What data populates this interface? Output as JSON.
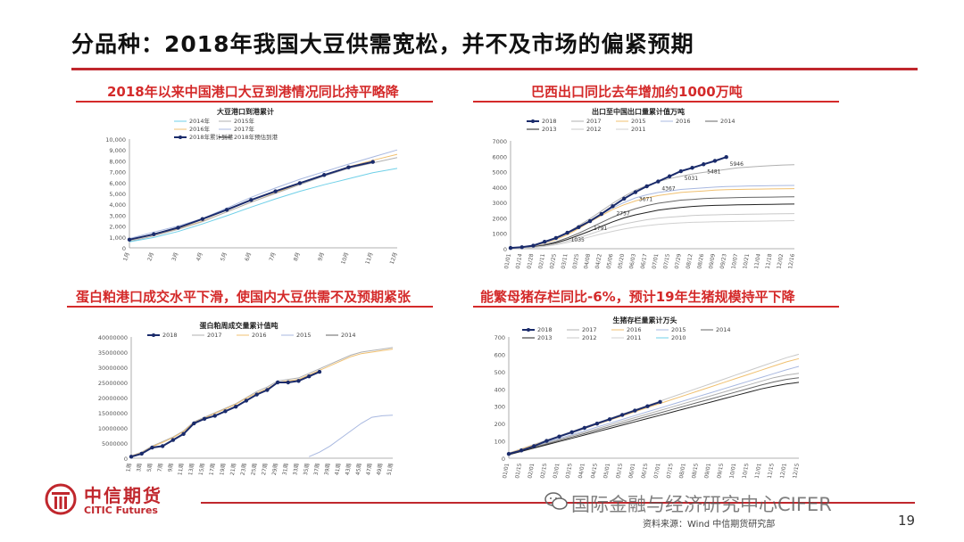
{
  "slide": {
    "title": "分品种：2018年我国大豆供需宽松，并不及市场的偏紧预期",
    "page_number": "19",
    "source": "资料来源：Wind 中信期货研究部",
    "watermark": "国际金融与经济研究中心CIFER"
  },
  "logo": {
    "name_cn": "中信期货",
    "name_en": "CITIC Futures"
  },
  "colors": {
    "accent": "#c0272d",
    "title_red": "#d42a2a"
  },
  "chart_data": [
    {
      "id": "port-arrivals",
      "type": "line",
      "panel_title": "2018年以来中国港口大豆到港情况同比持平略降",
      "title": "大豆港口到港累计",
      "categories": [
        "1月",
        "2月",
        "3月",
        "4月",
        "5月",
        "6月",
        "7月",
        "8月",
        "9月",
        "10月",
        "11月",
        "12月"
      ],
      "ylim": [
        0,
        10000
      ],
      "yticks": [
        "0",
        "1,000",
        "2,000",
        "3,000",
        "4,000",
        "5,000",
        "6,000",
        "7,000",
        "8,000",
        "9,000",
        "10,000"
      ],
      "legend": [
        "2014年",
        "2015年",
        "2016年",
        "2017年",
        "2018年累计到港",
        "2018年预估到港"
      ],
      "series": [
        {
          "name": "2018年累计到港",
          "highlight": true,
          "values": [
            750,
            1250,
            1850,
            2650,
            3500,
            4400,
            5200,
            5950,
            6700,
            7400,
            7900,
            null
          ]
        },
        {
          "name": "2017年",
          "values": [
            850,
            1450,
            2000,
            2700,
            3650,
            4650,
            5500,
            6300,
            7000,
            7700,
            8350,
            9000
          ]
        },
        {
          "name": "2016年",
          "values": [
            700,
            1200,
            1750,
            2450,
            3300,
            4200,
            5050,
            5900,
            6700,
            7450,
            8050,
            8600
          ]
        },
        {
          "name": "2015年",
          "values": [
            600,
            1100,
            1700,
            2400,
            3300,
            4200,
            5000,
            5800,
            6600,
            7300,
            7800,
            8300
          ]
        },
        {
          "name": "2014年",
          "values": [
            550,
            950,
            1500,
            2200,
            2950,
            3750,
            4500,
            5200,
            5800,
            6350,
            6900,
            7300
          ]
        }
      ]
    },
    {
      "id": "brazil-exports",
      "type": "line",
      "panel_title": "巴西出口同比去年增加约1000万吨",
      "title": "出口至中国出口量累计值万吨",
      "categories": [
        "01/01",
        "01/14",
        "01/28",
        "02/11",
        "02/25",
        "03/11",
        "03/25",
        "04/08",
        "04/22",
        "05/06",
        "05/20",
        "06/03",
        "06/17",
        "07/01",
        "07/15",
        "07/29",
        "08/12",
        "08/26",
        "09/09",
        "09/23",
        "10/07",
        "10/21",
        "11/04",
        "11/18",
        "12/02",
        "12/16"
      ],
      "ylim": [
        0,
        7000
      ],
      "yticks": [
        "0",
        "1000",
        "2000",
        "3000",
        "4000",
        "5000",
        "6000",
        "7000"
      ],
      "legend": [
        "2018",
        "2017",
        "2015",
        "2016",
        "2014",
        "2013",
        "2012",
        "2011"
      ],
      "data_labels": [
        "1035",
        "1791",
        "2757",
        "3671",
        "4367",
        "5031",
        "5481",
        "5946"
      ],
      "series": [
        {
          "name": "2018",
          "highlight": true,
          "values": [
            50,
            100,
            200,
            450,
            700,
            1035,
            1400,
            1791,
            2250,
            2757,
            3250,
            3671,
            4050,
            4367,
            4700,
            5031,
            5250,
            5481,
            5700,
            5946,
            null,
            null,
            null,
            null,
            null,
            null
          ]
        },
        {
          "name": "2017",
          "values": [
            50,
            100,
            200,
            400,
            700,
            1050,
            1500,
            1950,
            2450,
            2950,
            3400,
            3800,
            4100,
            4350,
            4550,
            4700,
            4850,
            4950,
            5050,
            5150,
            5250,
            5300,
            5350,
            5400,
            5430,
            5450
          ]
        },
        {
          "name": "2015",
          "values": [
            30,
            80,
            180,
            350,
            600,
            900,
            1300,
            1750,
            2150,
            2550,
            2850,
            3100,
            3300,
            3450,
            3550,
            3650,
            3700,
            3750,
            3800,
            3830,
            3850,
            3860,
            3870,
            3880,
            3890,
            3900
          ]
        },
        {
          "name": "2016",
          "values": [
            40,
            90,
            190,
            380,
            650,
            980,
            1380,
            1800,
            2250,
            2650,
            3000,
            3300,
            3500,
            3650,
            3750,
            3850,
            3900,
            3950,
            4000,
            4030,
            4050,
            4070,
            4080,
            4090,
            4100,
            4110
          ]
        },
        {
          "name": "2014",
          "values": [
            20,
            60,
            130,
            260,
            450,
            700,
            1000,
            1350,
            1700,
            2050,
            2350,
            2600,
            2800,
            2950,
            3050,
            3150,
            3200,
            3250,
            3280,
            3300,
            3320,
            3330,
            3340,
            3350,
            3360,
            3370
          ]
        },
        {
          "name": "2013",
          "values": [
            20,
            50,
            110,
            220,
            380,
            600,
            870,
            1150,
            1450,
            1750,
            2000,
            2200,
            2350,
            2500,
            2600,
            2680,
            2740,
            2780,
            2810,
            2830,
            2850,
            2860,
            2870,
            2880,
            2890,
            2900
          ]
        },
        {
          "name": "2012",
          "values": [
            15,
            40,
            90,
            180,
            320,
            500,
            720,
            950,
            1200,
            1420,
            1600,
            1750,
            1880,
            1980,
            2050,
            2100,
            2150,
            2180,
            2200,
            2220,
            2230,
            2240,
            2250,
            2260,
            2270,
            2280
          ]
        },
        {
          "name": "2011",
          "values": [
            10,
            30,
            70,
            150,
            260,
            400,
            580,
            770,
            960,
            1130,
            1280,
            1400,
            1500,
            1580,
            1640,
            1680,
            1710,
            1730,
            1750,
            1760,
            1770,
            1780,
            1790,
            1800,
            1810,
            1820
          ]
        }
      ]
    },
    {
      "id": "meal-volume",
      "type": "line",
      "panel_title": "蛋白粕港口成交水平下滑，使国内大豆供需不及预期紧张",
      "title": "蛋白粕周成交量累计值吨",
      "categories": [
        "1周",
        "3周",
        "5周",
        "7周",
        "9周",
        "11周",
        "13周",
        "15周",
        "17周",
        "19周",
        "21周",
        "23周",
        "25周",
        "27周",
        "29周",
        "31周",
        "33周",
        "35周",
        "37周",
        "39周",
        "41周",
        "43周",
        "45周",
        "47周",
        "49周",
        "51周"
      ],
      "ylim": [
        0,
        40000000
      ],
      "yticks": [
        "0",
        "5000000",
        "10000000",
        "15000000",
        "20000000",
        "25000000",
        "30000000",
        "35000000",
        "40000000"
      ],
      "legend": [
        "2018",
        "2017",
        "2016",
        "2015",
        "2014"
      ],
      "series": [
        {
          "name": "2018",
          "highlight": true,
          "values": [
            500000,
            1500000,
            3500000,
            4000000,
            6000000,
            8000000,
            11500000,
            13000000,
            14000000,
            15500000,
            17000000,
            19000000,
            21000000,
            22500000,
            25000000,
            25000000,
            25500000,
            27000000,
            28500000,
            null,
            null,
            null,
            null,
            null,
            null,
            null
          ]
        },
        {
          "name": "2017",
          "values": [
            800000,
            2000000,
            4000000,
            5500000,
            7000000,
            9000000,
            12000000,
            13500000,
            15000000,
            16500000,
            18000000,
            20000000,
            22000000,
            23500000,
            25500000,
            26000000,
            26500000,
            28000000,
            29500000,
            31000000,
            32500000,
            34000000,
            35000000,
            35500000,
            36000000,
            36500000
          ]
        },
        {
          "name": "2016",
          "values": [
            700000,
            1800000,
            3800000,
            5200000,
            6800000,
            8800000,
            11800000,
            13200000,
            14800000,
            16200000,
            17800000,
            19800000,
            21500000,
            23000000,
            25000000,
            25500000,
            26000000,
            27500000,
            29000000,
            30500000,
            32000000,
            33500000,
            34500000,
            35000000,
            35500000,
            36000000
          ]
        },
        {
          "name": "2015",
          "values": [
            null,
            null,
            null,
            null,
            null,
            null,
            null,
            null,
            null,
            null,
            null,
            null,
            null,
            null,
            null,
            null,
            null,
            500000,
            2000000,
            4000000,
            6500000,
            9000000,
            11500000,
            13500000,
            14000000,
            14200000
          ]
        }
      ]
    },
    {
      "id": "sow-inventory",
      "type": "line",
      "panel_title": "能繁母猪存栏同比-6%，预计19年生猪规模持平下降",
      "title": "生猪存栏量累计万头",
      "categories": [
        "01/01",
        "01/15",
        "02/01",
        "02/15",
        "03/01",
        "03/15",
        "04/01",
        "04/15",
        "05/01",
        "05/15",
        "06/01",
        "06/15",
        "07/01",
        "07/15",
        "08/01",
        "08/15",
        "09/01",
        "09/15",
        "10/01",
        "10/15",
        "11/01",
        "11/15",
        "12/01",
        "12/15"
      ],
      "ylim": [
        0,
        700
      ],
      "yticks": [
        "0",
        "100",
        "200",
        "300",
        "400",
        "500",
        "600",
        "700"
      ],
      "legend": [
        "2018",
        "2017",
        "2016",
        "2015",
        "2014",
        "2013",
        "2012",
        "2011",
        "2010"
      ],
      "series": [
        {
          "name": "2018",
          "highlight": true,
          "values": [
            25,
            45,
            70,
            100,
            125,
            150,
            175,
            200,
            225,
            250,
            275,
            300,
            325,
            null,
            null,
            null,
            null,
            null,
            null,
            null,
            null,
            null,
            null,
            null
          ]
        },
        {
          "name": "2012",
          "values": [
            30,
            55,
            80,
            105,
            130,
            155,
            180,
            205,
            230,
            255,
            280,
            305,
            330,
            355,
            380,
            405,
            430,
            455,
            480,
            505,
            530,
            555,
            580,
            600
          ]
        },
        {
          "name": "2016",
          "values": [
            28,
            52,
            76,
            100,
            124,
            148,
            172,
            196,
            220,
            244,
            268,
            292,
            316,
            340,
            364,
            388,
            412,
            436,
            460,
            484,
            508,
            532,
            556,
            575
          ]
        },
        {
          "name": "2015",
          "values": [
            26,
            48,
            70,
            92,
            114,
            136,
            158,
            180,
            202,
            224,
            246,
            268,
            290,
            312,
            334,
            356,
            378,
            400,
            422,
            444,
            466,
            488,
            510,
            530
          ]
        },
        {
          "name": "2017",
          "values": [
            24,
            45,
            66,
            87,
            108,
            129,
            150,
            171,
            192,
            213,
            234,
            255,
            276,
            297,
            318,
            339,
            360,
            381,
            402,
            423,
            444,
            465,
            480,
            490
          ]
        },
        {
          "name": "2014",
          "values": [
            22,
            42,
            62,
            82,
            102,
            122,
            142,
            162,
            182,
            202,
            222,
            242,
            262,
            282,
            302,
            322,
            342,
            362,
            382,
            402,
            422,
            440,
            455,
            465
          ]
        },
        {
          "name": "2013",
          "values": [
            20,
            39,
            58,
            77,
            96,
            115,
            134,
            153,
            172,
            191,
            210,
            229,
            248,
            267,
            286,
            305,
            324,
            343,
            362,
            381,
            400,
            415,
            428,
            438
          ]
        }
      ]
    }
  ]
}
